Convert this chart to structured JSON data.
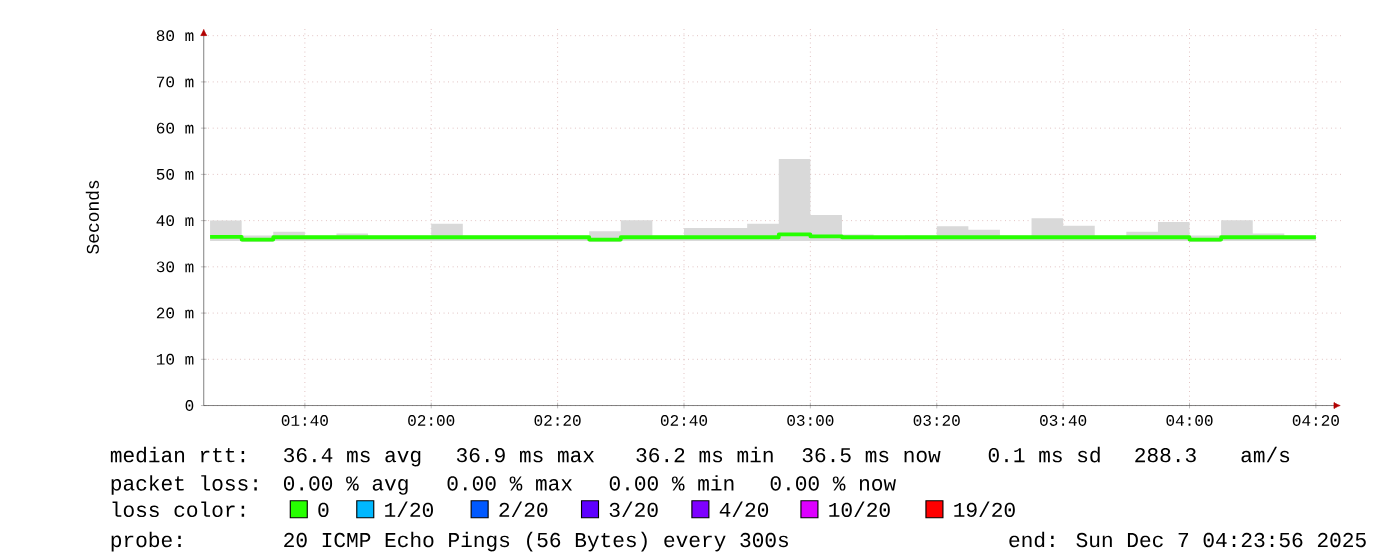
{
  "chart_data": {
    "type": "step",
    "ylabel": "Seconds",
    "x": [
      1.4167,
      1.5,
      1.5833,
      1.6667,
      1.75,
      1.8333,
      1.9167,
      2,
      2.0833,
      2.1667,
      2.25,
      2.3333,
      2.4167,
      2.5,
      2.5833,
      2.6667,
      2.75,
      2.8333,
      2.9167,
      3,
      3.0833,
      3.1667,
      3.25,
      3.3333,
      3.4167,
      3.5,
      3.5833,
      3.6667,
      3.75,
      3.8333,
      3.9167,
      4,
      4.0833,
      4.1667,
      4.25,
      4.3333
    ],
    "xlim": [
      1.4,
      4.4
    ],
    "xticks": [
      {
        "value": 1.6667,
        "label": "01:40"
      },
      {
        "value": 2,
        "label": "02:00"
      },
      {
        "value": 2.3333,
        "label": "02:20"
      },
      {
        "value": 2.6667,
        "label": "02:40"
      },
      {
        "value": 3,
        "label": "03:00"
      },
      {
        "value": 3.3333,
        "label": "03:20"
      },
      {
        "value": 3.6667,
        "label": "03:40"
      },
      {
        "value": 4,
        "label": "04:00"
      },
      {
        "value": 4.3333,
        "label": "04:20"
      }
    ],
    "ylim": [
      0,
      80
    ],
    "yticks": [
      0,
      {
        "value": 10,
        "label": "10 m"
      },
      {
        "value": 20,
        "label": "20 m"
      },
      {
        "value": 30,
        "label": "30 m"
      },
      {
        "value": 40,
        "label": "40 m"
      },
      {
        "value": 50,
        "label": "50 m"
      },
      {
        "value": 60,
        "label": "60 m"
      },
      {
        "value": 70,
        "label": "70 m"
      },
      {
        "value": 80,
        "label": "80 m"
      }
    ],
    "grid": true,
    "legend": "bottom",
    "legend_title": "loss color:",
    "series": [
      {
        "name": "0",
        "color": "#26ff00",
        "values": [
          36.5,
          35.9,
          36.4,
          36.4,
          36.4,
          36.4,
          36.4,
          36.4,
          36.4,
          36.4,
          36.4,
          36.4,
          35.9,
          36.4,
          36.4,
          36.4,
          36.4,
          36.4,
          37.0,
          36.6,
          36.4,
          36.4,
          36.4,
          36.4,
          36.4,
          36.4,
          36.4,
          36.4,
          36.4,
          36.4,
          36.4,
          35.9,
          36.4,
          36.4,
          36.4,
          36.4
        ],
        "lower": [
          35.6,
          35.4,
          35.6,
          35.6,
          35.6,
          35.6,
          35.6,
          35.6,
          35.6,
          35.6,
          35.6,
          35.6,
          35.4,
          35.6,
          35.6,
          35.6,
          35.6,
          35.6,
          35.6,
          35.6,
          35.6,
          35.6,
          35.6,
          35.6,
          35.6,
          35.6,
          35.6,
          35.6,
          35.6,
          35.6,
          35.6,
          35.4,
          35.6,
          35.6,
          35.6,
          35.6
        ],
        "upper": [
          40.0,
          36.8,
          37.6,
          36.8,
          37.2,
          36.8,
          36.8,
          39.3,
          36.8,
          36.8,
          36.8,
          36.8,
          37.7,
          40.1,
          36.8,
          38.4,
          38.4,
          39.3,
          53.3,
          41.2,
          37.0,
          36.5,
          36.8,
          38.8,
          38.0,
          36.8,
          40.5,
          38.9,
          36.8,
          37.6,
          39.7,
          36.8,
          40.1,
          37.2,
          36.8,
          36.8
        ]
      },
      {
        "name": "1/20",
        "color": "#00b8ff",
        "values": [
          null,
          null,
          null,
          null,
          null,
          null,
          null,
          null,
          null,
          null,
          null,
          null,
          null,
          null,
          null,
          null,
          null,
          null,
          null,
          null,
          null,
          null,
          null,
          null,
          null,
          null,
          null,
          null,
          null,
          null,
          null,
          null,
          null,
          null,
          null,
          null
        ]
      },
      {
        "name": "2/20",
        "color": "#0059ff",
        "values": [
          null,
          null,
          null,
          null,
          null,
          null,
          null,
          null,
          null,
          null,
          null,
          null,
          null,
          null,
          null,
          null,
          null,
          null,
          null,
          null,
          null,
          null,
          null,
          null,
          null,
          null,
          null,
          null,
          null,
          null,
          null,
          null,
          null,
          null,
          null,
          null
        ]
      },
      {
        "name": "3/20",
        "color": "#5e00ff",
        "values": [
          null,
          null,
          null,
          null,
          null,
          null,
          null,
          null,
          null,
          null,
          null,
          null,
          null,
          null,
          null,
          null,
          null,
          null,
          null,
          null,
          null,
          null,
          null,
          null,
          null,
          null,
          null,
          null,
          null,
          null,
          null,
          null,
          null,
          null,
          null,
          null
        ]
      },
      {
        "name": "4/20",
        "color": "#7e00ff",
        "values": [
          null,
          null,
          null,
          null,
          null,
          null,
          null,
          null,
          null,
          null,
          null,
          null,
          null,
          null,
          null,
          null,
          null,
          null,
          null,
          null,
          null,
          null,
          null,
          null,
          null,
          null,
          null,
          null,
          null,
          null,
          null,
          null,
          null,
          null,
          null,
          null
        ]
      },
      {
        "name": "10/20",
        "color": "#dd00ff",
        "values": [
          null,
          null,
          null,
          null,
          null,
          null,
          null,
          null,
          null,
          null,
          null,
          null,
          null,
          null,
          null,
          null,
          null,
          null,
          null,
          null,
          null,
          null,
          null,
          null,
          null,
          null,
          null,
          null,
          null,
          null,
          null,
          null,
          null,
          null,
          null,
          null
        ]
      },
      {
        "name": "19/20",
        "color": "#ff0000",
        "values": [
          null,
          null,
          null,
          null,
          null,
          null,
          null,
          null,
          null,
          null,
          null,
          null,
          null,
          null,
          null,
          null,
          null,
          null,
          null,
          null,
          null,
          null,
          null,
          null,
          null,
          null,
          null,
          null,
          null,
          null,
          null,
          null,
          null,
          null,
          null,
          null
        ]
      }
    ],
    "annotations": [
      "median rtt:",
      "36.4 ms avg",
      "36.9 ms max",
      "36.2 ms min",
      "36.5 ms now",
      "0.1 ms sd",
      "288.3",
      "am/s",
      "packet loss:",
      "0.00 % avg",
      "0.00 % max",
      "0.00 % min",
      "0.00 % now",
      "probe:",
      "20 ICMP Echo Pings (56 Bytes) every 300s",
      "end: Sun Dec  7 04:23:56 2025"
    ]
  }
}
